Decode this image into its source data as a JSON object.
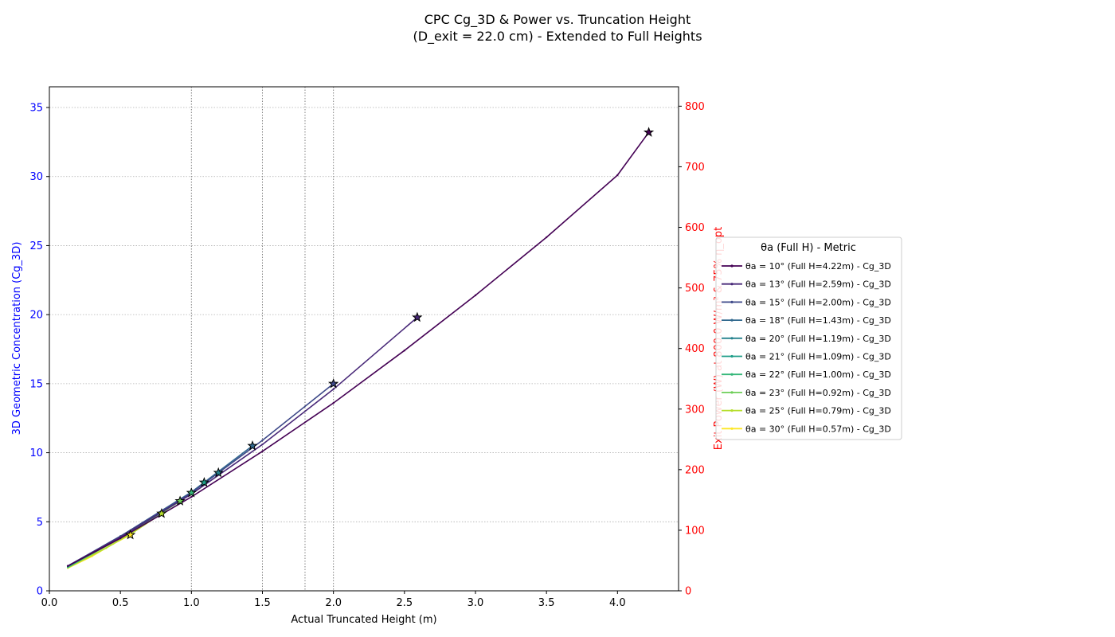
{
  "chart_data": {
    "type": "line",
    "title": "CPC Cg_3D & Power vs. Truncation Height",
    "subtitle": "(D_exit = 22.0 cm) - Extended to Full Heights",
    "xlabel": "Actual Truncated Height (m)",
    "ylabel_left": "3D Geometric Concentration (Cg_3D)",
    "ylabel_right": "Exit Power (W) at 800.0 W/m² & 75% η_opt",
    "xlim": [
      0.0,
      4.43
    ],
    "ylim_left": [
      0,
      36.5
    ],
    "ylim_right": [
      0,
      832
    ],
    "x_ticks": [
      "0.0",
      "0.5",
      "1.0",
      "1.5",
      "2.0",
      "2.5",
      "3.0",
      "3.5",
      "4.0"
    ],
    "x_tick_values": [
      0.0,
      0.5,
      1.0,
      1.5,
      2.0,
      2.5,
      3.0,
      3.5,
      4.0
    ],
    "y_ticks_left": [
      "0",
      "5",
      "10",
      "15",
      "20",
      "25",
      "30",
      "35"
    ],
    "y_tick_values_left": [
      0,
      5,
      10,
      15,
      20,
      25,
      30,
      35
    ],
    "y_ticks_right": [
      "0",
      "100",
      "200",
      "300",
      "400",
      "500",
      "600",
      "700",
      "800"
    ],
    "y_tick_values_right": [
      0,
      100,
      200,
      300,
      400,
      500,
      600,
      700,
      800
    ],
    "grid": "horizontal dotted",
    "vertical_reference_lines": [
      1.0,
      1.5,
      1.8,
      2.0
    ],
    "legend_title": "θa (Full H) - Metric",
    "legend_placement": "right",
    "left_axis_color": "#0000ff",
    "right_axis_color": "#ff0000",
    "series": [
      {
        "name": "θa = 10° (Full H=4.22m) - Cg_3D",
        "color": "#440154",
        "x": [
          0.13,
          0.5,
          1.0,
          1.5,
          2.0,
          2.5,
          3.0,
          3.5,
          4.0,
          4.22
        ],
        "values": [
          1.8,
          3.8,
          6.8,
          10.1,
          13.6,
          17.4,
          21.4,
          25.6,
          30.1,
          33.2
        ],
        "end_x": 4.22,
        "end_y": 33.2
      },
      {
        "name": "θa = 13° (Full H=2.59m) - Cg_3D",
        "color": "#482878",
        "x": [
          0.13,
          0.5,
          1.0,
          1.5,
          2.0,
          2.59
        ],
        "values": [
          1.8,
          3.9,
          7.0,
          10.6,
          14.6,
          19.8
        ],
        "end_x": 2.59,
        "end_y": 19.8
      },
      {
        "name": "θa = 15° (Full H=2.00m) - Cg_3D",
        "color": "#3e4989",
        "x": [
          0.13,
          0.5,
          1.0,
          1.5,
          2.0
        ],
        "values": [
          1.8,
          3.95,
          7.1,
          10.9,
          15.0
        ],
        "end_x": 2.0,
        "end_y": 15.0
      },
      {
        "name": "θa = 18° (Full H=1.43m) - Cg_3D",
        "color": "#31688e",
        "x": [
          0.13,
          0.5,
          1.0,
          1.43
        ],
        "values": [
          1.8,
          3.95,
          7.15,
          10.5
        ],
        "end_x": 1.43,
        "end_y": 10.5
      },
      {
        "name": "θa = 20° (Full H=1.19m) - Cg_3D",
        "color": "#26828e",
        "x": [
          0.13,
          0.5,
          1.0,
          1.19
        ],
        "values": [
          1.8,
          3.95,
          7.1,
          8.55
        ],
        "end_x": 1.19,
        "end_y": 8.55
      },
      {
        "name": "θa = 21° (Full H=1.09m) - Cg_3D",
        "color": "#1f9e89",
        "x": [
          0.13,
          0.5,
          1.0,
          1.09
        ],
        "values": [
          1.75,
          3.9,
          7.1,
          7.85
        ],
        "end_x": 1.09,
        "end_y": 7.85
      },
      {
        "name": "θa = 22° (Full H=1.00m) - Cg_3D",
        "color": "#35b779",
        "x": [
          0.13,
          0.5,
          0.8,
          1.0
        ],
        "values": [
          1.72,
          3.85,
          5.75,
          7.1
        ],
        "end_x": 1.0,
        "end_y": 7.1
      },
      {
        "name": "θa = 23° (Full H=0.92m) - Cg_3D",
        "color": "#6ece58",
        "x": [
          0.13,
          0.5,
          0.8,
          0.92
        ],
        "values": [
          1.7,
          3.8,
          5.7,
          6.5
        ],
        "end_x": 0.92,
        "end_y": 6.5
      },
      {
        "name": "θa = 25° (Full H=0.79m) - Cg_3D",
        "color": "#b5de2b",
        "x": [
          0.13,
          0.4,
          0.6,
          0.79
        ],
        "values": [
          1.68,
          3.1,
          4.3,
          5.6
        ],
        "end_x": 0.79,
        "end_y": 5.6
      },
      {
        "name": "θa = 30° (Full H=0.57m) - Cg_3D",
        "color": "#fde725",
        "x": [
          0.13,
          0.3,
          0.45,
          0.57
        ],
        "values": [
          1.65,
          2.5,
          3.4,
          4.05
        ],
        "end_x": 0.57,
        "end_y": 4.05
      }
    ]
  }
}
